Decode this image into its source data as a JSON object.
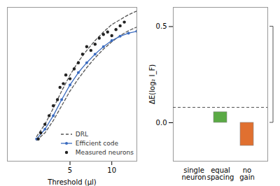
{
  "chart_data": [
    {
      "type": "line",
      "xlabel": "Threshold (μl)",
      "xlim": [
        -2.5,
        13
      ],
      "xticks": [
        5,
        10
      ],
      "ylim": [
        -1.5,
        11
      ],
      "tick_labels": "x",
      "legend": "lower right",
      "series": [
        {
          "name": "DRL",
          "type": "line",
          "color": "#555555",
          "line_style": "dashed",
          "x": [
            1,
            2,
            3,
            4,
            5,
            6,
            7,
            8,
            9,
            10,
            11,
            12,
            13
          ],
          "values": [
            0.5,
            1.5,
            2.8,
            4.2,
            5.5,
            6.6,
            7.5,
            8.3,
            9.0,
            9.6,
            10.0,
            10.4,
            10.7
          ]
        },
        {
          "name": "DRL",
          "type": "line",
          "color": "#555555",
          "line_style": "dashed",
          "x": [
            1,
            2,
            3,
            4,
            5,
            6,
            7,
            8,
            9,
            10,
            11,
            12,
            13
          ],
          "values": [
            0.2,
            0.8,
            1.8,
            3.0,
            4.2,
            5.2,
            6.1,
            6.9,
            7.6,
            8.2,
            8.7,
            9.1,
            9.4
          ]
        },
        {
          "name": "Efficient code",
          "type": "line",
          "color": "#3a6bbf",
          "line_style": "solid",
          "marker": "circle",
          "x": [
            1,
            2,
            3,
            4,
            5,
            6,
            7,
            8,
            9,
            10,
            11,
            12,
            13
          ],
          "values": [
            0.3,
            1.1,
            2.2,
            3.5,
            4.7,
            5.7,
            6.5,
            7.2,
            7.8,
            8.3,
            8.65,
            8.9,
            9.05
          ]
        },
        {
          "name": "Measured neurons",
          "type": "scatter",
          "color": "#222222",
          "marker": "circle",
          "x": [
            1.2,
            1.5,
            2.0,
            2.5,
            3.0,
            3.5,
            3.8,
            4.2,
            4.5,
            5.0,
            5.5,
            6.0,
            6.5,
            7.0,
            7.5,
            8.0,
            8.5,
            9.0,
            9.5,
            10.0,
            10.5,
            11.0,
            11.5
          ],
          "values": [
            0.3,
            0.8,
            1.5,
            2.2,
            3.0,
            3.5,
            4.5,
            4.8,
            5.5,
            5.2,
            6.0,
            6.5,
            7.2,
            7.8,
            7.5,
            8.0,
            8.5,
            8.8,
            9.0,
            8.7,
            9.2,
            9.5,
            9.8
          ]
        }
      ]
    },
    {
      "type": "bar",
      "categories": [
        "single\nneuron",
        "equal\nspacing",
        "no\ngain"
      ],
      "values": [
        0.0,
        0.055,
        -0.12
      ],
      "colors": [
        "#ffffff",
        "#5aaa45",
        "#e07030"
      ],
      "ylabel": "ΔE(log₂ I_F)",
      "ylim": [
        -0.2,
        0.6
      ],
      "yticks": [
        0,
        0.5
      ],
      "hline": 0.08,
      "bracket": [
        0,
        0.5
      ]
    }
  ]
}
